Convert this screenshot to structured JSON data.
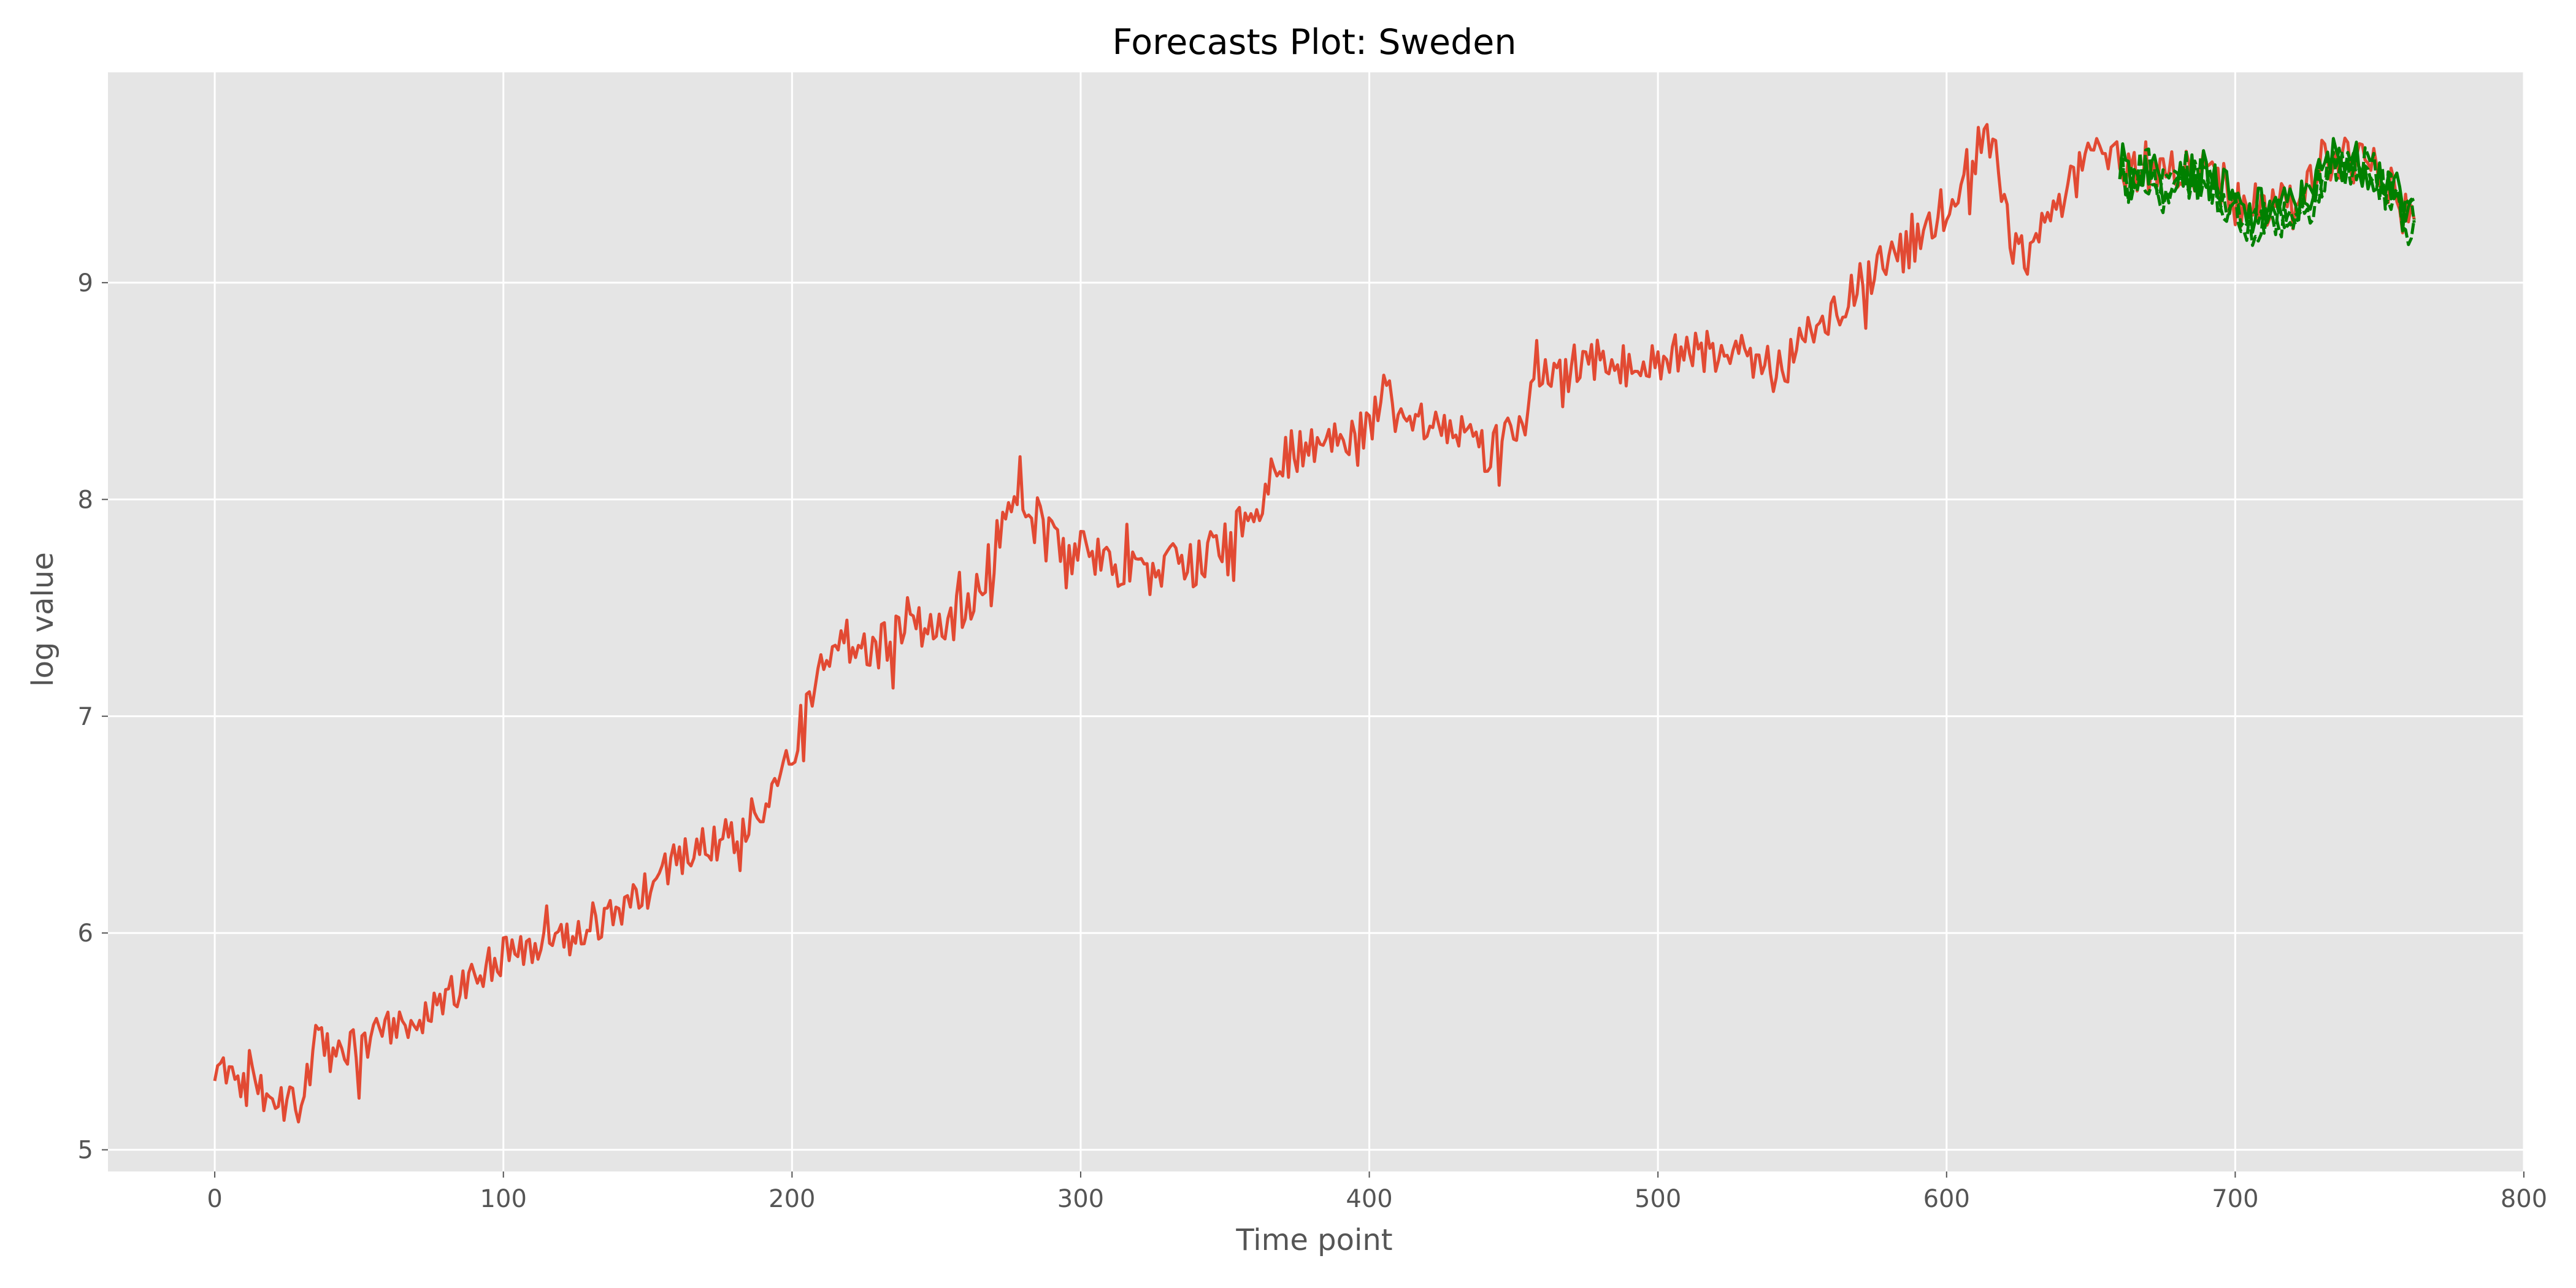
{
  "chart_data": {
    "type": "line",
    "title": "Forecasts Plot: Sweden",
    "xlabel": "Time point",
    "ylabel": "log value",
    "xlim": [
      -37,
      800
    ],
    "ylim": [
      4.9,
      9.97
    ],
    "xticks": [
      0,
      100,
      200,
      300,
      400,
      500,
      600,
      700,
      800
    ],
    "yticks": [
      5,
      6,
      7,
      8,
      9
    ],
    "grid": true,
    "style": "ggplot",
    "colors": {
      "background": "#e5e5e5",
      "grid": "#ffffff",
      "actual": "#e24a33",
      "forecast": "#008000"
    },
    "series": [
      {
        "key": "actual",
        "anchors": [
          [
            0,
            5.4
          ],
          [
            5,
            5.3
          ],
          [
            10,
            5.28
          ],
          [
            15,
            5.33
          ],
          [
            20,
            5.15
          ],
          [
            25,
            5.25
          ],
          [
            30,
            5.18
          ],
          [
            35,
            5.52
          ],
          [
            40,
            5.45
          ],
          [
            50,
            5.5
          ],
          [
            60,
            5.55
          ],
          [
            70,
            5.6
          ],
          [
            80,
            5.7
          ],
          [
            90,
            5.8
          ],
          [
            100,
            5.9
          ],
          [
            110,
            5.95
          ],
          [
            120,
            5.95
          ],
          [
            130,
            6.0
          ],
          [
            140,
            6.1
          ],
          [
            150,
            6.2
          ],
          [
            160,
            6.35
          ],
          [
            170,
            6.4
          ],
          [
            180,
            6.45
          ],
          [
            190,
            6.6
          ],
          [
            195,
            6.75
          ],
          [
            200,
            6.85
          ],
          [
            205,
            7.05
          ],
          [
            210,
            7.25
          ],
          [
            215,
            7.3
          ],
          [
            220,
            7.3
          ],
          [
            230,
            7.3
          ],
          [
            240,
            7.45
          ],
          [
            250,
            7.4
          ],
          [
            260,
            7.5
          ],
          [
            265,
            7.6
          ],
          [
            270,
            7.75
          ],
          [
            275,
            7.9
          ],
          [
            280,
            7.95
          ],
          [
            285,
            7.85
          ],
          [
            290,
            7.8
          ],
          [
            300,
            7.75
          ],
          [
            310,
            7.7
          ],
          [
            320,
            7.65
          ],
          [
            330,
            7.7
          ],
          [
            340,
            7.7
          ],
          [
            350,
            7.8
          ],
          [
            360,
            7.95
          ],
          [
            370,
            8.2
          ],
          [
            380,
            8.25
          ],
          [
            390,
            8.3
          ],
          [
            400,
            8.35
          ],
          [
            405,
            8.5
          ],
          [
            410,
            8.4
          ],
          [
            420,
            8.35
          ],
          [
            430,
            8.3
          ],
          [
            435,
            8.25
          ],
          [
            440,
            8.2
          ],
          [
            450,
            8.35
          ],
          [
            460,
            8.55
          ],
          [
            470,
            8.6
          ],
          [
            480,
            8.65
          ],
          [
            490,
            8.6
          ],
          [
            500,
            8.65
          ],
          [
            510,
            8.65
          ],
          [
            520,
            8.7
          ],
          [
            530,
            8.65
          ],
          [
            540,
            8.6
          ],
          [
            550,
            8.7
          ],
          [
            560,
            8.85
          ],
          [
            570,
            9.0
          ],
          [
            580,
            9.1
          ],
          [
            590,
            9.2
          ],
          [
            600,
            9.35
          ],
          [
            605,
            9.5
          ],
          [
            610,
            9.6
          ],
          [
            615,
            9.65
          ],
          [
            618,
            9.5
          ],
          [
            622,
            9.2
          ],
          [
            628,
            9.1
          ],
          [
            635,
            9.3
          ],
          [
            640,
            9.4
          ],
          [
            645,
            9.5
          ],
          [
            650,
            9.6
          ],
          [
            660,
            9.55
          ],
          [
            670,
            9.5
          ],
          [
            680,
            9.52
          ],
          [
            690,
            9.5
          ],
          [
            700,
            9.35
          ],
          [
            710,
            9.35
          ],
          [
            720,
            9.35
          ],
          [
            725,
            9.45
          ],
          [
            730,
            9.55
          ],
          [
            740,
            9.55
          ],
          [
            750,
            9.5
          ],
          [
            755,
            9.45
          ],
          [
            757,
            9.3
          ],
          [
            762,
            9.38
          ]
        ]
      },
      {
        "key": "forecast",
        "anchors": [
          [
            660,
            9.55
          ],
          [
            665,
            9.5
          ],
          [
            670,
            9.55
          ],
          [
            675,
            9.45
          ],
          [
            680,
            9.55
          ],
          [
            685,
            9.5
          ],
          [
            690,
            9.5
          ],
          [
            695,
            9.45
          ],
          [
            700,
            9.35
          ],
          [
            705,
            9.3
          ],
          [
            710,
            9.35
          ],
          [
            715,
            9.35
          ],
          [
            720,
            9.35
          ],
          [
            725,
            9.4
          ],
          [
            730,
            9.5
          ],
          [
            735,
            9.6
          ],
          [
            740,
            9.55
          ],
          [
            745,
            9.55
          ],
          [
            750,
            9.5
          ],
          [
            755,
            9.45
          ],
          [
            758,
            9.3
          ],
          [
            762,
            9.35
          ]
        ],
        "band": [
          [
            660,
            9.2
          ],
          [
            700,
            9.25
          ],
          [
            730,
            9.25
          ],
          [
            762,
            9.3
          ]
        ]
      }
    ]
  }
}
